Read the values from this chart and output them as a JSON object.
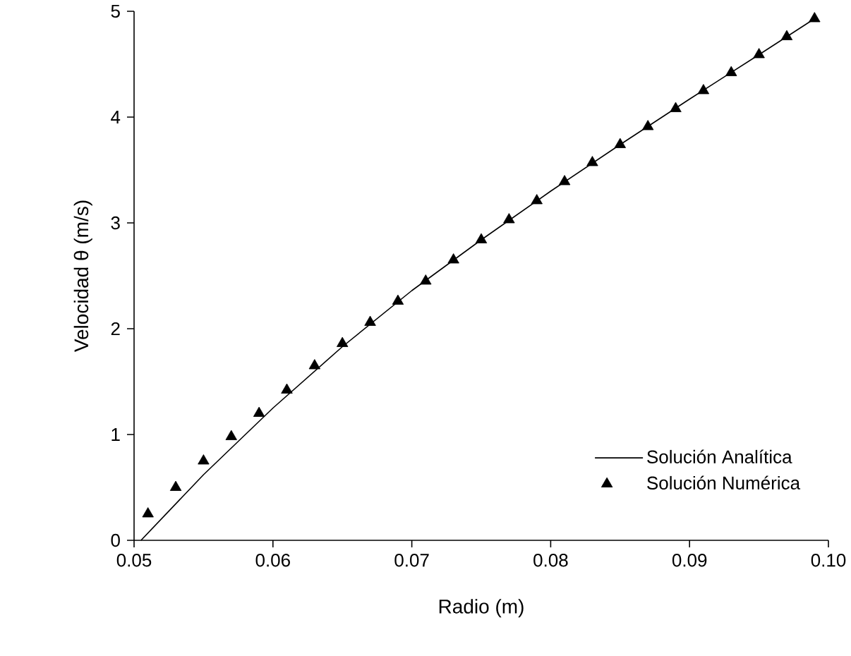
{
  "chart_data": {
    "type": "line",
    "xlabel": "Radio (m)",
    "ylabel": "Velocidad θ (m/s)",
    "xlim": [
      0.05,
      0.1
    ],
    "ylim": [
      0,
      5
    ],
    "xticks": [
      0.05,
      0.06,
      0.07,
      0.08,
      0.09,
      {
        "value": 0.1,
        "label": "0.10"
      }
    ],
    "yticks": [
      0,
      1,
      2,
      3,
      4,
      5
    ],
    "legend": "bottom right",
    "grid": false,
    "series": [
      {
        "name": "Solución Analítica",
        "color": "#000000",
        "x": [
          0.0505,
          0.055,
          0.06,
          0.065,
          0.07,
          0.075,
          0.08,
          0.085,
          0.09,
          0.095,
          0.099
        ],
        "values": [
          0,
          0.62,
          1.25,
          1.83,
          2.36,
          2.84,
          3.3,
          3.74,
          4.17,
          4.59,
          4.93
        ]
      },
      {
        "name": "Solución Numérica",
        "type": "scatter",
        "marker": "triangle",
        "color": "#000000",
        "x": [
          0.051,
          0.053,
          0.055,
          0.057,
          0.059,
          0.061,
          0.063,
          0.065,
          0.067,
          0.069,
          0.071,
          0.073,
          0.075,
          0.077,
          0.079,
          0.081,
          0.083,
          0.085,
          0.087,
          0.089,
          0.091,
          0.093,
          0.095,
          0.097,
          0.099
        ],
        "values": [
          0.25,
          0.5,
          0.75,
          0.98,
          1.2,
          1.42,
          1.65,
          1.86,
          2.06,
          2.26,
          2.45,
          2.65,
          2.84,
          3.03,
          3.21,
          3.39,
          3.57,
          3.74,
          3.91,
          4.08,
          4.25,
          4.42,
          4.59,
          4.76,
          4.93
        ]
      }
    ]
  }
}
